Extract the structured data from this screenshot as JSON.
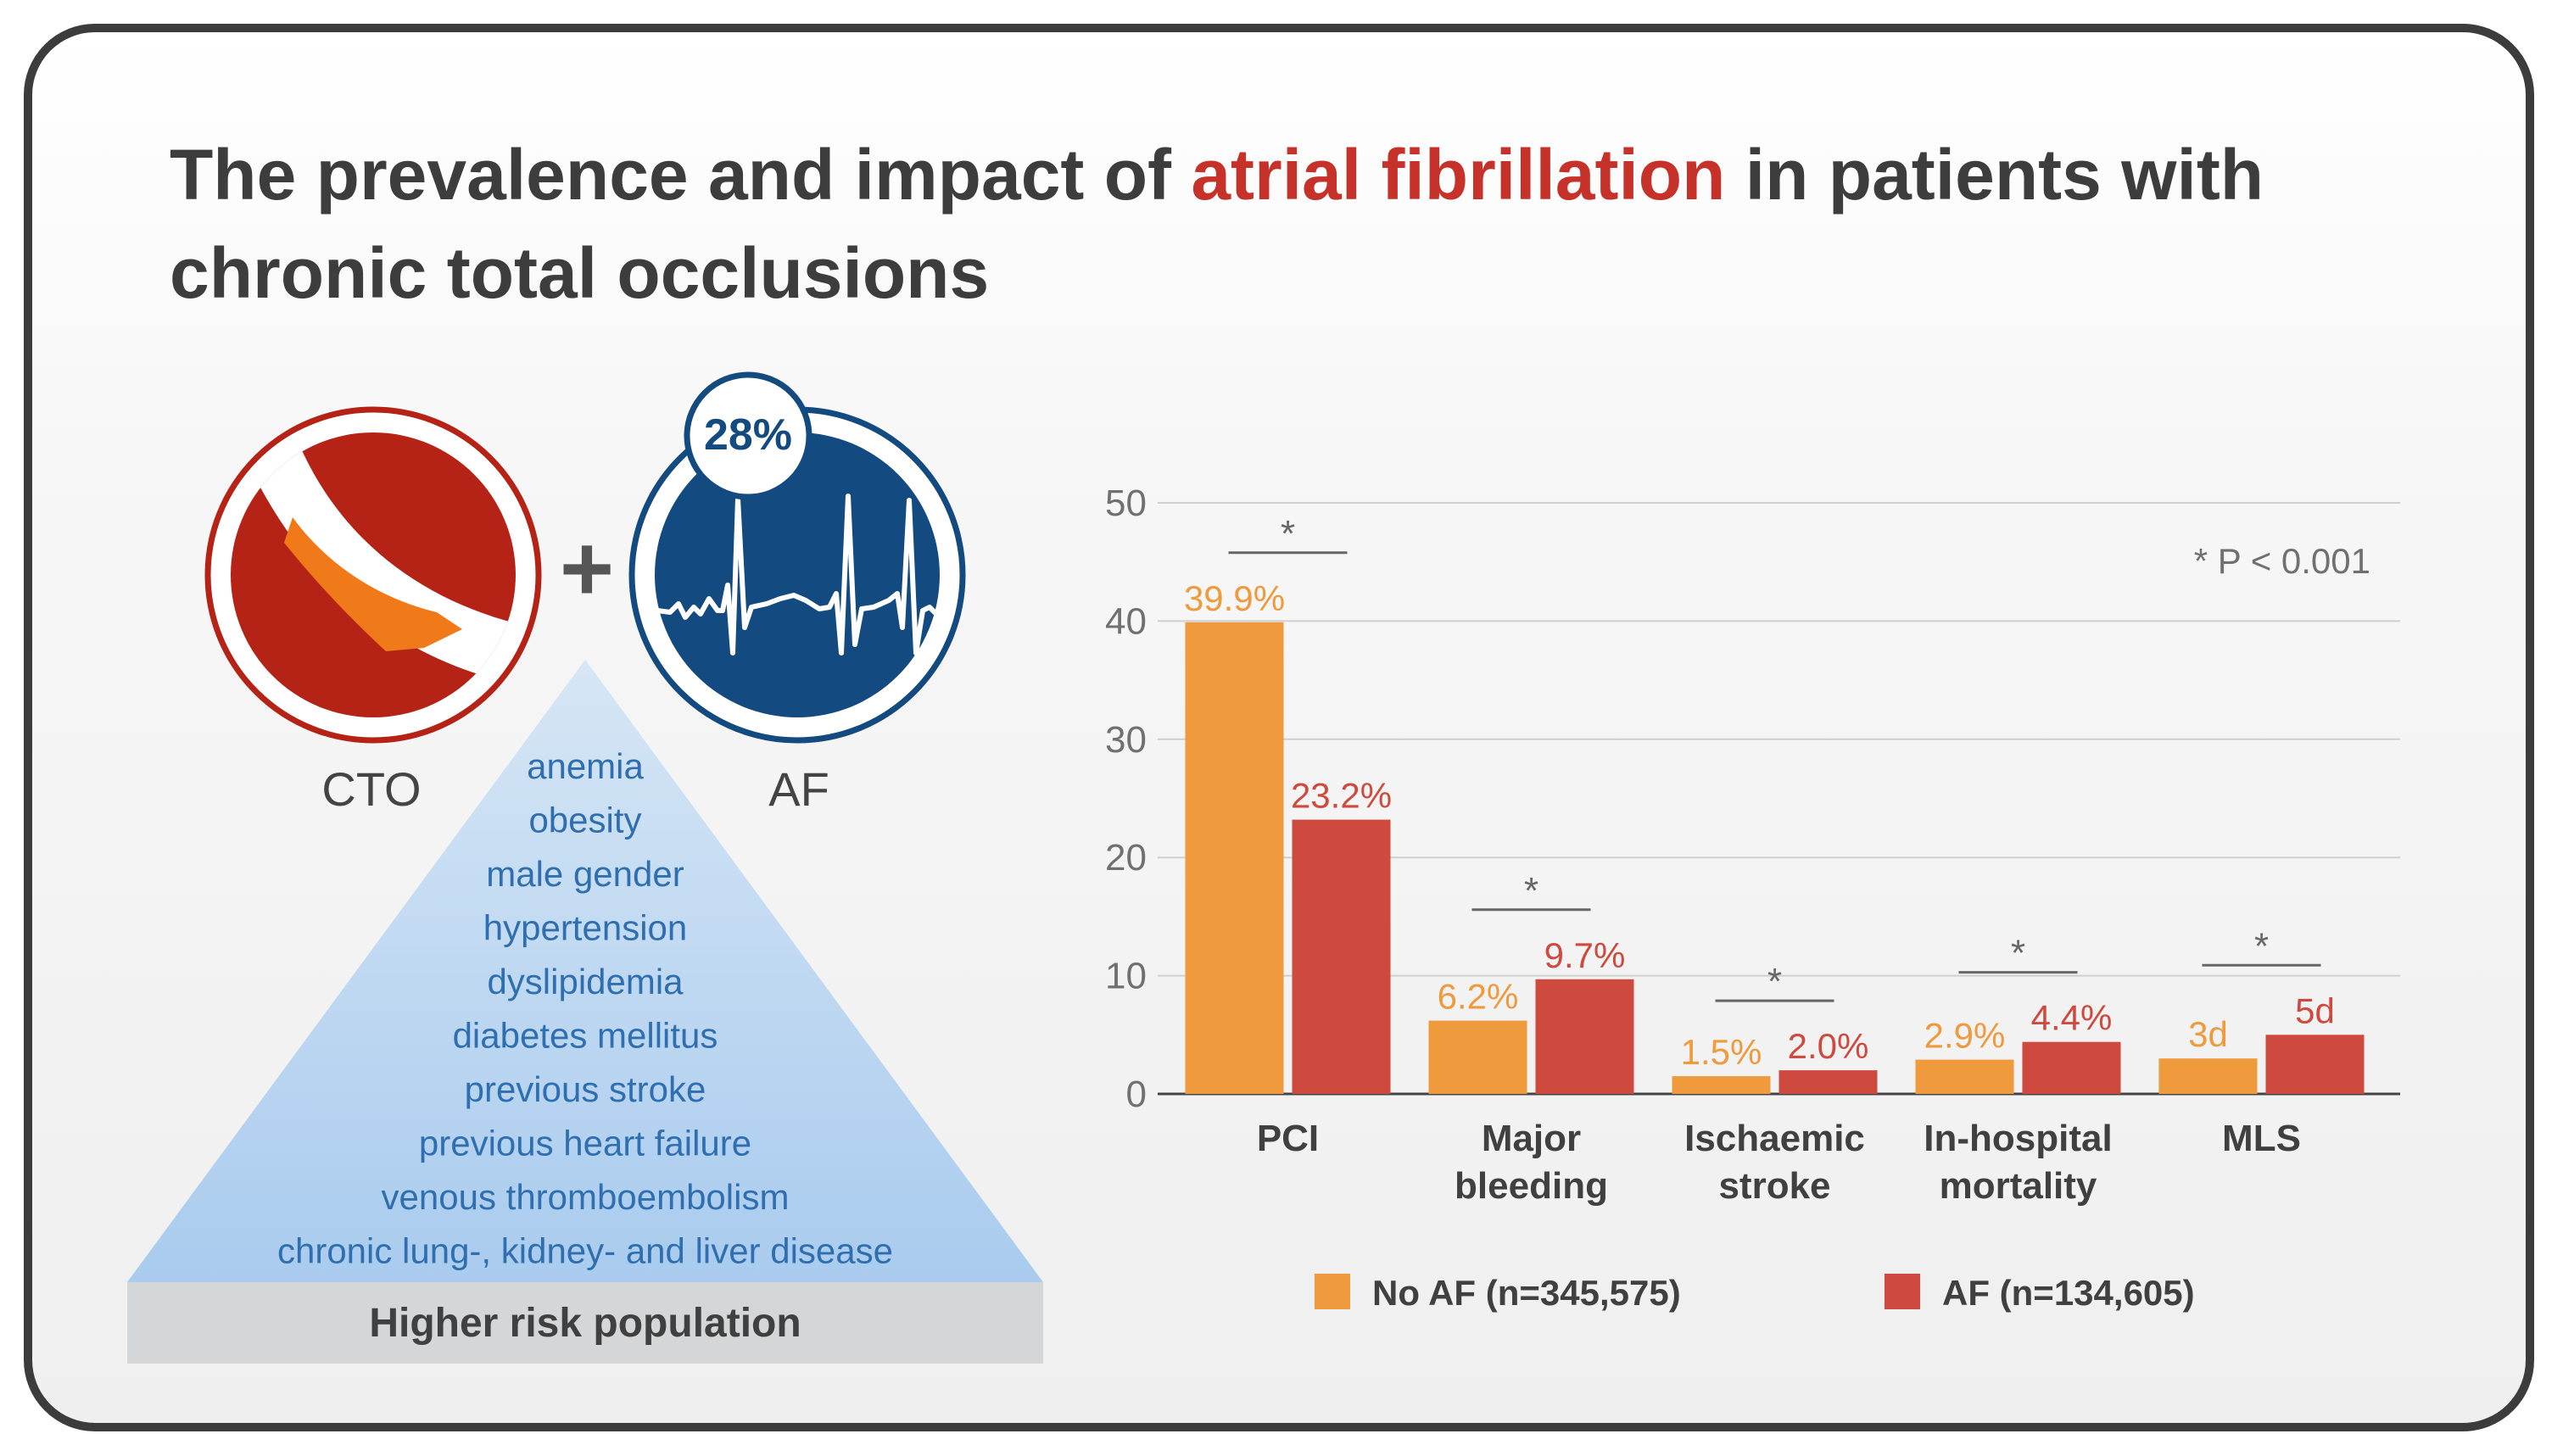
{
  "title": {
    "part1": "The prevalence and impact of ",
    "highlight": "atrial fibrillation",
    "part2": " in patients with chronic total occlusions"
  },
  "colors": {
    "no_af": "#ee9a3d",
    "af": "#cf4a3e",
    "cto_red": "#b52216",
    "cto_orange": "#f07a1a",
    "af_blue": "#134a7f",
    "pyramid_text": "#2f6fb0",
    "pyramid_top": "#cfe1f3",
    "pyramid_bottom": "#a9cbee",
    "base_bar": "#d4d6d8",
    "title": "#3d3d3d",
    "title_highlight": "#c6312a",
    "grid": "#cfcfcf"
  },
  "diagram": {
    "cto_label": "CTO",
    "af_label": "AF",
    "plus_sign": "+",
    "af_badge": "28%",
    "icons": [
      "cto-vessel-icon",
      "ecg-waveform-icon"
    ],
    "risk_factors": [
      "anemia",
      "obesity",
      "male gender",
      "hypertension",
      "dyslipidemia",
      "diabetes mellitus",
      "previous stroke",
      "previous heart failure",
      "venous thromboembolism",
      "chronic lung-, kidney- and liver disease"
    ],
    "base_label": "Higher risk population"
  },
  "chart_data": {
    "type": "bar",
    "title": "",
    "xlabel": "",
    "ylabel": "",
    "ylim": [
      0,
      50
    ],
    "yticks": [
      0,
      10,
      20,
      30,
      40,
      50
    ],
    "grid": true,
    "categories": [
      [
        "PCI"
      ],
      [
        "Major",
        "bleeding"
      ],
      [
        "Ischaemic",
        "stroke"
      ],
      [
        "In-hospital",
        "mortality"
      ],
      [
        "MLS"
      ]
    ],
    "series": [
      {
        "name": "No AF (n=345,575)",
        "color": "#ee9a3d",
        "values": [
          39.9,
          6.2,
          1.5,
          2.9,
          3
        ],
        "labels": [
          "39.9%",
          "6.2%",
          "1.5%",
          "2.9%",
          "3d"
        ]
      },
      {
        "name": "AF (n=134,605)",
        "color": "#cf4a3e",
        "values": [
          23.2,
          9.7,
          2.0,
          4.4,
          5
        ],
        "labels": [
          "23.2%",
          "9.7%",
          "2.0%",
          "4.4%",
          "5d"
        ]
      }
    ],
    "significance_marker": "*",
    "significance_note": "* P < 0.001",
    "legend_position": "bottom"
  }
}
